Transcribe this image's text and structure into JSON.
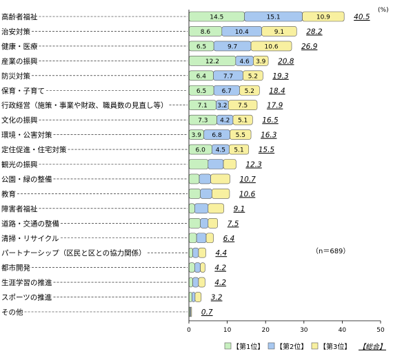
{
  "chart_data": {
    "type": "bar",
    "orientation": "horizontal",
    "stacked": true,
    "unit_label": "(%)",
    "note": "（n＝689）",
    "categories": [
      "高齢者福祉",
      "治安対策",
      "健康・医療",
      "産業の振興",
      "防災対策",
      "保育・子育て",
      "行政経営（施策・事業や財政、職員数の見直し等）",
      "文化の振興",
      "環境・公害対策",
      "定住促進・住宅対策",
      "観光の振興",
      "公園・緑の整備",
      "教育",
      "障害者福祉",
      "道路・交通の整備",
      "清掃・リサイクル",
      "パートナーシップ（区民と区との協力関係）",
      "都市開発",
      "生涯学習の推進",
      "スポーツの推進",
      "その他"
    ],
    "series": [
      {
        "name": "【第1位】",
        "color": "#c8f0c0",
        "values": [
          14.5,
          8.6,
          6.5,
          12.2,
          6.4,
          6.5,
          7.1,
          7.3,
          3.9,
          6.0,
          5.0,
          2.7,
          3.0,
          1.5,
          3.0,
          2.0,
          1.0,
          1.5,
          1.0,
          0.8,
          0.3
        ]
      },
      {
        "name": "【第2位】",
        "color": "#a8c8f0",
        "values": [
          15.1,
          10.4,
          9.7,
          4.6,
          7.7,
          6.7,
          3.2,
          4.2,
          6.8,
          4.5,
          4.0,
          3.0,
          3.0,
          3.5,
          2.0,
          2.5,
          1.5,
          1.5,
          1.5,
          0.8,
          0.2
        ]
      },
      {
        "name": "【第3位】",
        "color": "#f8f0a0",
        "values": [
          10.9,
          9.1,
          10.6,
          3.9,
          5.2,
          5.2,
          7.5,
          5.1,
          5.5,
          5.1,
          3.3,
          5.0,
          4.6,
          4.1,
          2.5,
          1.9,
          1.9,
          1.2,
          1.7,
          1.6,
          0.2
        ]
      }
    ],
    "totals": [
      40.5,
      28.2,
      26.9,
      20.8,
      19.3,
      18.4,
      17.9,
      16.5,
      16.3,
      15.5,
      12.3,
      10.7,
      10.6,
      9.1,
      7.5,
      6.4,
      4.4,
      4.2,
      4.2,
      3.2,
      0.7
    ],
    "shown_labels": [
      [
        true,
        true,
        true
      ],
      [
        true,
        true,
        true
      ],
      [
        true,
        true,
        true
      ],
      [
        true,
        true,
        true
      ],
      [
        true,
        true,
        true
      ],
      [
        true,
        true,
        true
      ],
      [
        true,
        true,
        true
      ],
      [
        true,
        true,
        true
      ],
      [
        true,
        true,
        true
      ],
      [
        true,
        true,
        true
      ],
      [
        false,
        false,
        false
      ],
      [
        false,
        false,
        false
      ],
      [
        false,
        false,
        false
      ],
      [
        false,
        false,
        false
      ],
      [
        false,
        false,
        false
      ],
      [
        false,
        false,
        false
      ],
      [
        false,
        false,
        false
      ],
      [
        false,
        false,
        false
      ],
      [
        false,
        false,
        false
      ],
      [
        false,
        false,
        false
      ],
      [
        false,
        false,
        false
      ]
    ],
    "x_ticks": [
      "0",
      "10",
      "20",
      "30",
      "40",
      "50"
    ],
    "xlim": [
      0,
      50
    ],
    "total_legend": "【総合】",
    "grid": false,
    "legend_position": "bottom-right"
  }
}
